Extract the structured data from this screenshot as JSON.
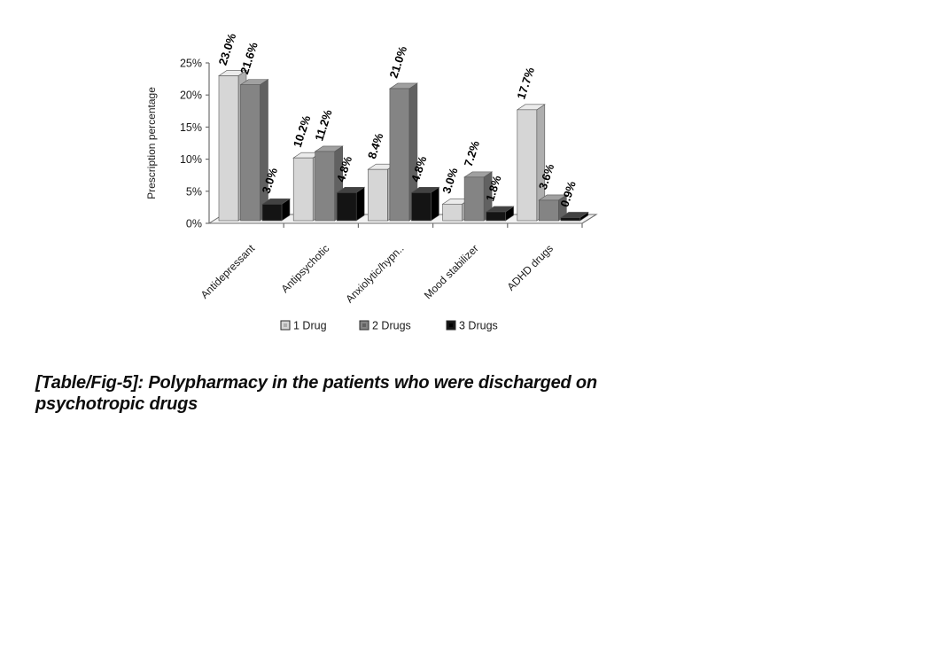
{
  "figure": {
    "caption_line1": "[Table/Fig-5]: Polypharmacy in the patients who were discharged on",
    "caption_line2": "psychotropic drugs"
  },
  "chart_data": {
    "type": "bar",
    "style": "3d-clustered",
    "title": "",
    "xlabel": "",
    "ylabel": "Prescription percentage",
    "ylim": [
      0,
      25
    ],
    "ytick_step": 5,
    "ytick_labels": [
      "0%",
      "5%",
      "10%",
      "15%",
      "20%",
      "25%"
    ],
    "grid": false,
    "legend_position": "bottom",
    "categories": [
      "Antidepressant",
      "Antipsychotic",
      "Anxiolytic/hypn..",
      "Mood stabilizer",
      "ADHD drugs"
    ],
    "series": [
      {
        "name": "1 Drug",
        "values": [
          23.0,
          10.2,
          8.4,
          3.0,
          17.7
        ],
        "labels": [
          "23.0%",
          "10.2%",
          "8.4%",
          "3.0%",
          "17.7%"
        ],
        "color": {
          "front": "#d6d6d6",
          "top": "#ebebeb",
          "side": "#aeaeae"
        }
      },
      {
        "name": "2 Drugs",
        "values": [
          21.6,
          11.2,
          21.0,
          7.2,
          3.6
        ],
        "labels": [
          "21.6%",
          "11.2%",
          "21.0%",
          "7.2%",
          "3.6%"
        ],
        "color": {
          "front": "#848484",
          "top": "#a0a0a0",
          "side": "#616161"
        }
      },
      {
        "name": "3 Drugs",
        "values": [
          3.0,
          4.8,
          4.8,
          1.8,
          0.9
        ],
        "labels": [
          "3.0%",
          "4.8%",
          "4.8%",
          "1.8%",
          "0.9%"
        ],
        "color": {
          "front": "#141414",
          "top": "#424242",
          "side": "#000000"
        }
      }
    ],
    "axis_color": "#6e6e6e",
    "text_color": "#1a1a1a",
    "floor_color": "#f1f1f1",
    "value_label_color": "#000000"
  }
}
